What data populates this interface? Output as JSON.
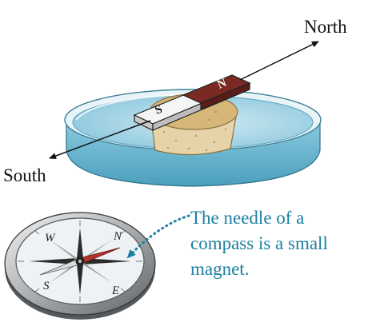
{
  "labels": {
    "north": "North",
    "south": "South"
  },
  "bar_magnet": {
    "pole_s": "S",
    "pole_n": "N"
  },
  "compass": {
    "dir_n": "N",
    "dir_e": "E",
    "dir_s": "S",
    "dir_w": "W"
  },
  "caption": {
    "lines": [
      "The needle of a",
      "compass is a small",
      "magnet."
    ]
  },
  "colors": {
    "water": "#7fc3d8",
    "water_dark": "#4a9fbd",
    "caption": "#1a7fa0",
    "needle_north": "#b8322c",
    "needle_south": "#d9dde0",
    "magnet_red": "#7a2a22",
    "cork": "#e2cfa0"
  }
}
